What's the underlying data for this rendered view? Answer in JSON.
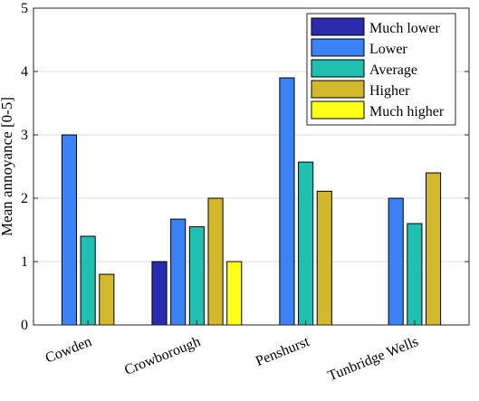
{
  "chart_data": {
    "type": "bar",
    "title": "",
    "xlabel": "",
    "ylabel": "Mean annoyance [0-5]",
    "ylim": [
      0,
      5
    ],
    "yticks": [
      "0",
      "1",
      "2",
      "3",
      "4",
      "5"
    ],
    "categories": [
      "Cowden",
      "Crowborough",
      "Penshurst",
      "Tunbridge Wells"
    ],
    "series": [
      {
        "name": "Much lower",
        "color": "#2b2bb0",
        "values": [
          null,
          1.0,
          null,
          null
        ]
      },
      {
        "name": "Lower",
        "color": "#3b82f6",
        "values": [
          3.0,
          1.67,
          3.9,
          2.0
        ]
      },
      {
        "name": "Average",
        "color": "#20c0b0",
        "values": [
          1.4,
          1.55,
          2.57,
          1.6
        ]
      },
      {
        "name": "Higher",
        "color": "#d4b82c",
        "values": [
          0.8,
          2.0,
          2.11,
          2.4
        ]
      },
      {
        "name": "Much higher",
        "color": "#ffff1a",
        "values": [
          null,
          1.0,
          null,
          null
        ]
      }
    ],
    "grid": true,
    "legend_position": "top-right"
  }
}
